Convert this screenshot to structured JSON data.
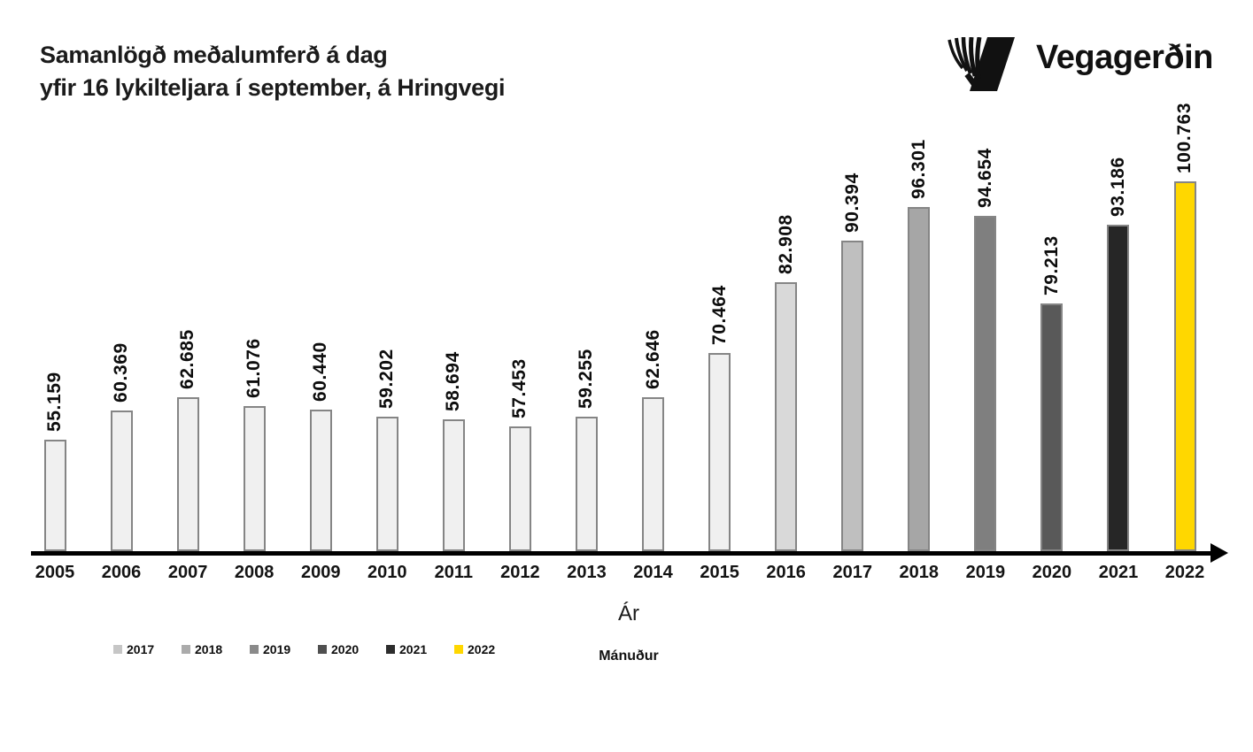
{
  "header": {
    "title_line1": "Samanlögð meðalumferð á dag",
    "title_line2": "yfir 16 lykilteljara í september, á Hringvegi",
    "logo": {
      "text": "Vegagerðin"
    }
  },
  "chart_data": {
    "type": "bar",
    "title": "Samanlögð meðalumferð á dag yfir 16 lykilteljara í september, á Hringvegi",
    "categories": [
      "2005",
      "2006",
      "2007",
      "2008",
      "2009",
      "2010",
      "2011",
      "2012",
      "2013",
      "2014",
      "2015",
      "2016",
      "2017",
      "2018",
      "2019",
      "2020",
      "2021",
      "2022"
    ],
    "values": [
      55159,
      60369,
      62685,
      61076,
      60440,
      59202,
      58694,
      57453,
      59255,
      62646,
      70464,
      82908,
      90394,
      96301,
      94654,
      79213,
      93186,
      100763
    ],
    "value_labels": [
      "55.159",
      "60.369",
      "62.685",
      "61.076",
      "60.440",
      "59.202",
      "58.694",
      "57.453",
      "59.255",
      "62.646",
      "70.464",
      "82.908",
      "90.394",
      "96.301",
      "94.654",
      "79.213",
      "93.186",
      "100.763"
    ],
    "bar_colors": [
      "#f0f0f0",
      "#f0f0f0",
      "#f0f0f0",
      "#f0f0f0",
      "#f0f0f0",
      "#f0f0f0",
      "#f0f0f0",
      "#f0f0f0",
      "#f0f0f0",
      "#f0f0f0",
      "#f0f0f0",
      "#d9d9d9",
      "#bfbfbf",
      "#a6a6a6",
      "#7f7f7f",
      "#595959",
      "#262626",
      "#ffd700"
    ],
    "bar_border_color": "#858585",
    "axis_color": "#000000",
    "xlabel": "Ár",
    "xlabel_secondary": "Mánuður",
    "grid": false,
    "y_axis_visible": false,
    "ylim": [
      35481,
      101500
    ],
    "legend": {
      "position": "bottom-left",
      "items": [
        {
          "label": "2017",
          "color": "#c6c6c6"
        },
        {
          "label": "2018",
          "color": "#ababab"
        },
        {
          "label": "2019",
          "color": "#8a8a8a"
        },
        {
          "label": "2020",
          "color": "#4f4f4f"
        },
        {
          "label": "2021",
          "color": "#2d2d2d"
        },
        {
          "label": "2022",
          "color": "#ffd700"
        }
      ]
    }
  }
}
